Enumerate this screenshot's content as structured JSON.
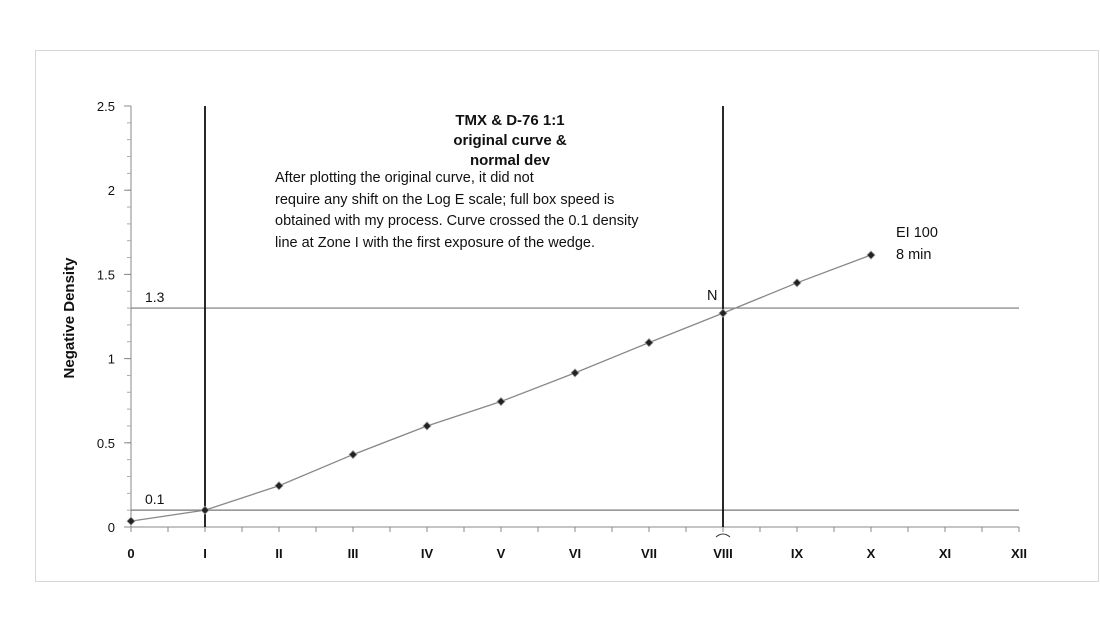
{
  "chart_data": {
    "type": "line",
    "title": [
      "TMX & D-76 1:1",
      "original curve &",
      "normal dev"
    ],
    "xlabel": "",
    "ylabel": "Negative Density",
    "x_categories": [
      "0",
      "I",
      "II",
      "III",
      "IV",
      "V",
      "VI",
      "VII",
      "VIII",
      "IX",
      "X",
      "XI",
      "XII"
    ],
    "ylim": [
      0,
      2.5
    ],
    "yticks": [
      "0",
      "0.5",
      "1",
      "1.5",
      "2",
      "2.5"
    ],
    "ytick_values": [
      0,
      0.5,
      1,
      1.5,
      2,
      2.5
    ],
    "grid": false,
    "series": [
      {
        "name": "EI 100 8 min",
        "x": [
          0,
          1,
          2,
          3,
          4,
          5,
          6,
          7,
          8,
          9,
          10
        ],
        "values": [
          0.035,
          0.1,
          0.245,
          0.43,
          0.6,
          0.745,
          0.915,
          1.095,
          1.27,
          1.45,
          1.615
        ]
      }
    ],
    "reference_lines": {
      "horizontal": [
        {
          "value": 1.3,
          "label": "1.3"
        },
        {
          "value": 0.1,
          "label": "0.1"
        }
      ],
      "vertical": [
        {
          "zone": 1
        },
        {
          "zone": 8
        }
      ]
    },
    "annotations": {
      "note": [
        "After plotting the original curve, it did not",
        "require any shift on the Log E scale; full box speed is",
        "obtained with my process.  Curve crossed the 0.1 density",
        "line at Zone I with the first exposure of the wedge."
      ],
      "n_marker": "N",
      "series_label": [
        "EI 100",
        "8 min"
      ]
    }
  }
}
